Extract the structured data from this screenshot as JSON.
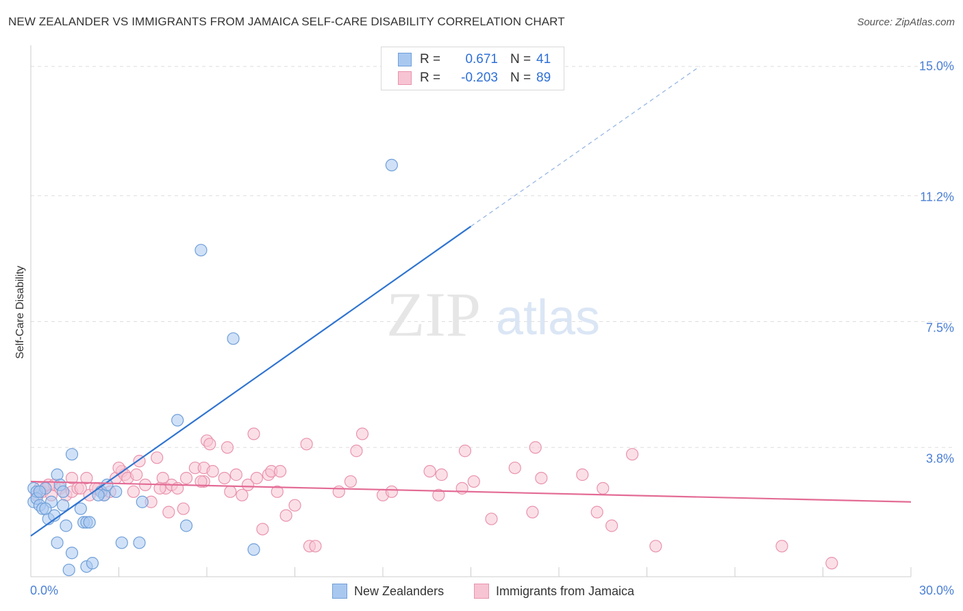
{
  "title": "NEW ZEALANDER VS IMMIGRANTS FROM JAMAICA SELF-CARE DISABILITY CORRELATION CHART",
  "source": "Source: ZipAtlas.com",
  "watermark": {
    "zip": "ZIP",
    "atlas": "atlas"
  },
  "colors": {
    "blue_fill": "#a9c8f0",
    "blue_stroke": "#6f9fd8",
    "blue_line": "#2f74d0",
    "pink_fill": "#f7c4d3",
    "pink_stroke": "#e993ad",
    "pink_line": "#e36b95",
    "grid": "#dddddd",
    "tick_text": "#4a7fd4"
  },
  "legend": {
    "rows": [
      {
        "r_label": "R =",
        "r_value": "0.671",
        "n_label": "N =",
        "n_value": "41"
      },
      {
        "r_label": "R =",
        "r_value": "-0.203",
        "n_label": "N =",
        "n_value": "89"
      }
    ]
  },
  "bottom_legend": {
    "series1": "New Zealanders",
    "series2": "Immigrants from Jamaica"
  },
  "chart_data": {
    "type": "scatter",
    "title": "NEW ZEALANDER VS IMMIGRANTS FROM JAMAICA SELF-CARE DISABILITY CORRELATION CHART",
    "xlabel": "",
    "ylabel": "Self-Care Disability",
    "xlim": [
      0,
      30
    ],
    "ylim": [
      0,
      15.5
    ],
    "x_tick_labels": [
      "0.0%",
      "30.0%"
    ],
    "y_ticks": [
      3.8,
      7.5,
      11.2,
      15.0
    ],
    "y_tick_labels": [
      "3.8%",
      "7.5%",
      "11.2%",
      "15.0%"
    ],
    "grid": true,
    "series": [
      {
        "name": "New Zealanders",
        "points": [
          [
            0.1,
            2.6
          ],
          [
            0.1,
            2.2
          ],
          [
            0.2,
            2.5
          ],
          [
            0.2,
            2.3
          ],
          [
            0.3,
            2.1
          ],
          [
            0.4,
            2.0
          ],
          [
            0.5,
            2.6
          ],
          [
            0.6,
            1.7
          ],
          [
            0.7,
            2.2
          ],
          [
            0.8,
            1.8
          ],
          [
            0.9,
            1.0
          ],
          [
            0.9,
            3.0
          ],
          [
            1.0,
            2.7
          ],
          [
            1.1,
            2.5
          ],
          [
            1.1,
            2.1
          ],
          [
            1.2,
            1.5
          ],
          [
            1.3,
            0.2
          ],
          [
            1.4,
            0.7
          ],
          [
            1.4,
            3.6
          ],
          [
            1.7,
            2.0
          ],
          [
            1.8,
            1.6
          ],
          [
            1.9,
            1.6
          ],
          [
            1.9,
            0.3
          ],
          [
            2.0,
            1.6
          ],
          [
            2.1,
            0.4
          ],
          [
            2.4,
            2.5
          ],
          [
            2.5,
            2.4
          ],
          [
            2.6,
            2.7
          ],
          [
            2.9,
            2.5
          ],
          [
            3.1,
            1.0
          ],
          [
            3.7,
            1.0
          ],
          [
            3.8,
            2.2
          ],
          [
            5.0,
            4.6
          ],
          [
            5.3,
            1.5
          ],
          [
            5.8,
            9.6
          ],
          [
            6.9,
            7.0
          ],
          [
            7.6,
            0.8
          ],
          [
            12.3,
            12.1
          ],
          [
            0.3,
            2.5
          ],
          [
            0.5,
            2.0
          ],
          [
            2.3,
            2.4
          ]
        ]
      },
      {
        "name": "Immigrants from Jamaica",
        "points": [
          [
            0.2,
            2.4
          ],
          [
            0.3,
            2.6
          ],
          [
            0.4,
            2.5
          ],
          [
            0.5,
            2.6
          ],
          [
            0.6,
            2.7
          ],
          [
            0.7,
            2.4
          ],
          [
            0.8,
            2.7
          ],
          [
            1.0,
            2.6
          ],
          [
            1.2,
            2.4
          ],
          [
            1.4,
            2.5
          ],
          [
            1.4,
            2.9
          ],
          [
            1.6,
            2.6
          ],
          [
            1.7,
            2.6
          ],
          [
            1.9,
            2.9
          ],
          [
            2.0,
            2.4
          ],
          [
            2.3,
            2.6
          ],
          [
            2.4,
            2.5
          ],
          [
            2.5,
            2.4
          ],
          [
            2.7,
            2.5
          ],
          [
            2.9,
            2.9
          ],
          [
            3.1,
            3.1
          ],
          [
            3.2,
            3.0
          ],
          [
            3.3,
            2.9
          ],
          [
            3.5,
            2.5
          ],
          [
            3.6,
            3.0
          ],
          [
            3.7,
            3.4
          ],
          [
            3.9,
            2.7
          ],
          [
            4.1,
            2.2
          ],
          [
            4.3,
            3.5
          ],
          [
            4.5,
            2.9
          ],
          [
            4.6,
            2.6
          ],
          [
            4.7,
            1.9
          ],
          [
            4.8,
            2.7
          ],
          [
            5.0,
            2.6
          ],
          [
            5.2,
            2.0
          ],
          [
            5.3,
            2.9
          ],
          [
            5.6,
            3.2
          ],
          [
            5.9,
            2.8
          ],
          [
            5.9,
            3.2
          ],
          [
            6.0,
            4.0
          ],
          [
            6.1,
            3.9
          ],
          [
            6.2,
            3.1
          ],
          [
            6.6,
            2.9
          ],
          [
            6.7,
            3.8
          ],
          [
            6.8,
            2.5
          ],
          [
            7.0,
            3.0
          ],
          [
            7.2,
            2.4
          ],
          [
            7.4,
            2.7
          ],
          [
            7.6,
            4.2
          ],
          [
            7.7,
            2.9
          ],
          [
            7.9,
            1.4
          ],
          [
            8.1,
            3.0
          ],
          [
            8.2,
            3.1
          ],
          [
            8.4,
            2.5
          ],
          [
            8.5,
            3.1
          ],
          [
            8.7,
            1.8
          ],
          [
            9.0,
            2.1
          ],
          [
            9.4,
            3.9
          ],
          [
            9.5,
            0.9
          ],
          [
            9.7,
            0.9
          ],
          [
            10.5,
            2.5
          ],
          [
            10.9,
            2.8
          ],
          [
            11.1,
            3.7
          ],
          [
            11.3,
            4.2
          ],
          [
            12.0,
            2.4
          ],
          [
            12.3,
            2.5
          ],
          [
            13.6,
            3.1
          ],
          [
            13.9,
            2.4
          ],
          [
            14.0,
            3.0
          ],
          [
            14.7,
            2.6
          ],
          [
            14.8,
            3.7
          ],
          [
            15.1,
            2.8
          ],
          [
            15.7,
            1.7
          ],
          [
            16.5,
            3.2
          ],
          [
            17.1,
            1.9
          ],
          [
            17.2,
            3.8
          ],
          [
            17.4,
            2.9
          ],
          [
            18.8,
            3.0
          ],
          [
            19.3,
            1.9
          ],
          [
            19.5,
            2.6
          ],
          [
            19.8,
            1.5
          ],
          [
            20.5,
            3.6
          ],
          [
            21.3,
            0.9
          ],
          [
            25.6,
            0.9
          ],
          [
            27.3,
            0.4
          ],
          [
            2.2,
            2.6
          ],
          [
            3.0,
            3.2
          ],
          [
            4.4,
            2.6
          ],
          [
            5.8,
            2.8
          ]
        ]
      }
    ],
    "trend_lines": [
      {
        "series": "New Zealanders",
        "x": [
          0,
          15
        ],
        "y": [
          1.2,
          10.3
        ],
        "extended_x": [
          15,
          22.8
        ],
        "extended_y": [
          10.3,
          15.0
        ]
      },
      {
        "series": "Immigrants from Jamaica",
        "x": [
          0,
          30
        ],
        "y": [
          2.8,
          2.2
        ]
      }
    ]
  }
}
